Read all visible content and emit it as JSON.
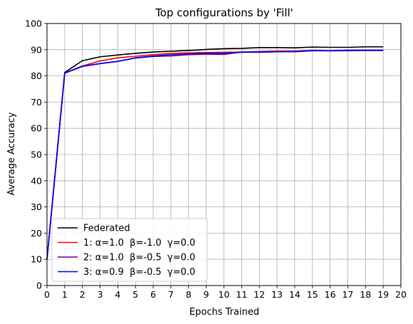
{
  "chart_data": {
    "type": "line",
    "title": "Top configurations by 'Fill'",
    "xlabel": "Epochs Trained",
    "ylabel": "Average Accuracy",
    "xlim": [
      0,
      20
    ],
    "ylim": [
      0,
      100
    ],
    "xticks": [
      "0",
      "1",
      "2",
      "3",
      "4",
      "5",
      "6",
      "7",
      "8",
      "9",
      "10",
      "11",
      "12",
      "13",
      "14",
      "15",
      "16",
      "17",
      "18",
      "19",
      "20"
    ],
    "yticks": [
      "0",
      "10",
      "20",
      "30",
      "40",
      "50",
      "60",
      "70",
      "80",
      "90",
      "100"
    ],
    "grid": true,
    "legend_position": "lower-left",
    "x": [
      0,
      1,
      2,
      3,
      4,
      5,
      6,
      7,
      8,
      9,
      10,
      11,
      12,
      13,
      14,
      15,
      16,
      17,
      18,
      19
    ],
    "series": [
      {
        "name": "Federated",
        "color": "#000000",
        "values": [
          10,
          81.3,
          85.8,
          87.3,
          88.0,
          88.6,
          89.1,
          89.4,
          89.7,
          90.1,
          90.4,
          90.5,
          90.8,
          90.8,
          90.7,
          91.0,
          90.9,
          90.9,
          91.1,
          91.1
        ]
      },
      {
        "name": "1: α=1.0  β=-1.0  γ=0.0",
        "color": "#ff0000",
        "values": [
          10,
          81.0,
          83.8,
          85.7,
          86.9,
          87.5,
          88.1,
          88.6,
          88.8,
          88.9,
          89.0,
          89.1,
          89.3,
          89.5,
          89.5,
          89.7,
          89.6,
          89.8,
          89.8,
          89.9
        ]
      },
      {
        "name": "2: α=1.0  β=-0.5  γ=0.0",
        "color": "#800080",
        "values": [
          10,
          81.0,
          83.6,
          84.7,
          85.6,
          86.8,
          87.4,
          87.6,
          88.1,
          88.3,
          88.2,
          89.1,
          89.0,
          89.2,
          89.2,
          89.6,
          89.6,
          89.6,
          89.7,
          89.7
        ]
      },
      {
        "name": "3: α=0.9  β=-0.5  γ=0.0",
        "color": "#0000ff",
        "values": [
          10,
          81.1,
          83.7,
          84.7,
          85.5,
          86.9,
          87.6,
          88.1,
          88.4,
          88.6,
          88.6,
          89.0,
          89.1,
          89.2,
          89.3,
          89.7,
          89.6,
          89.8,
          89.8,
          89.8
        ]
      }
    ]
  }
}
